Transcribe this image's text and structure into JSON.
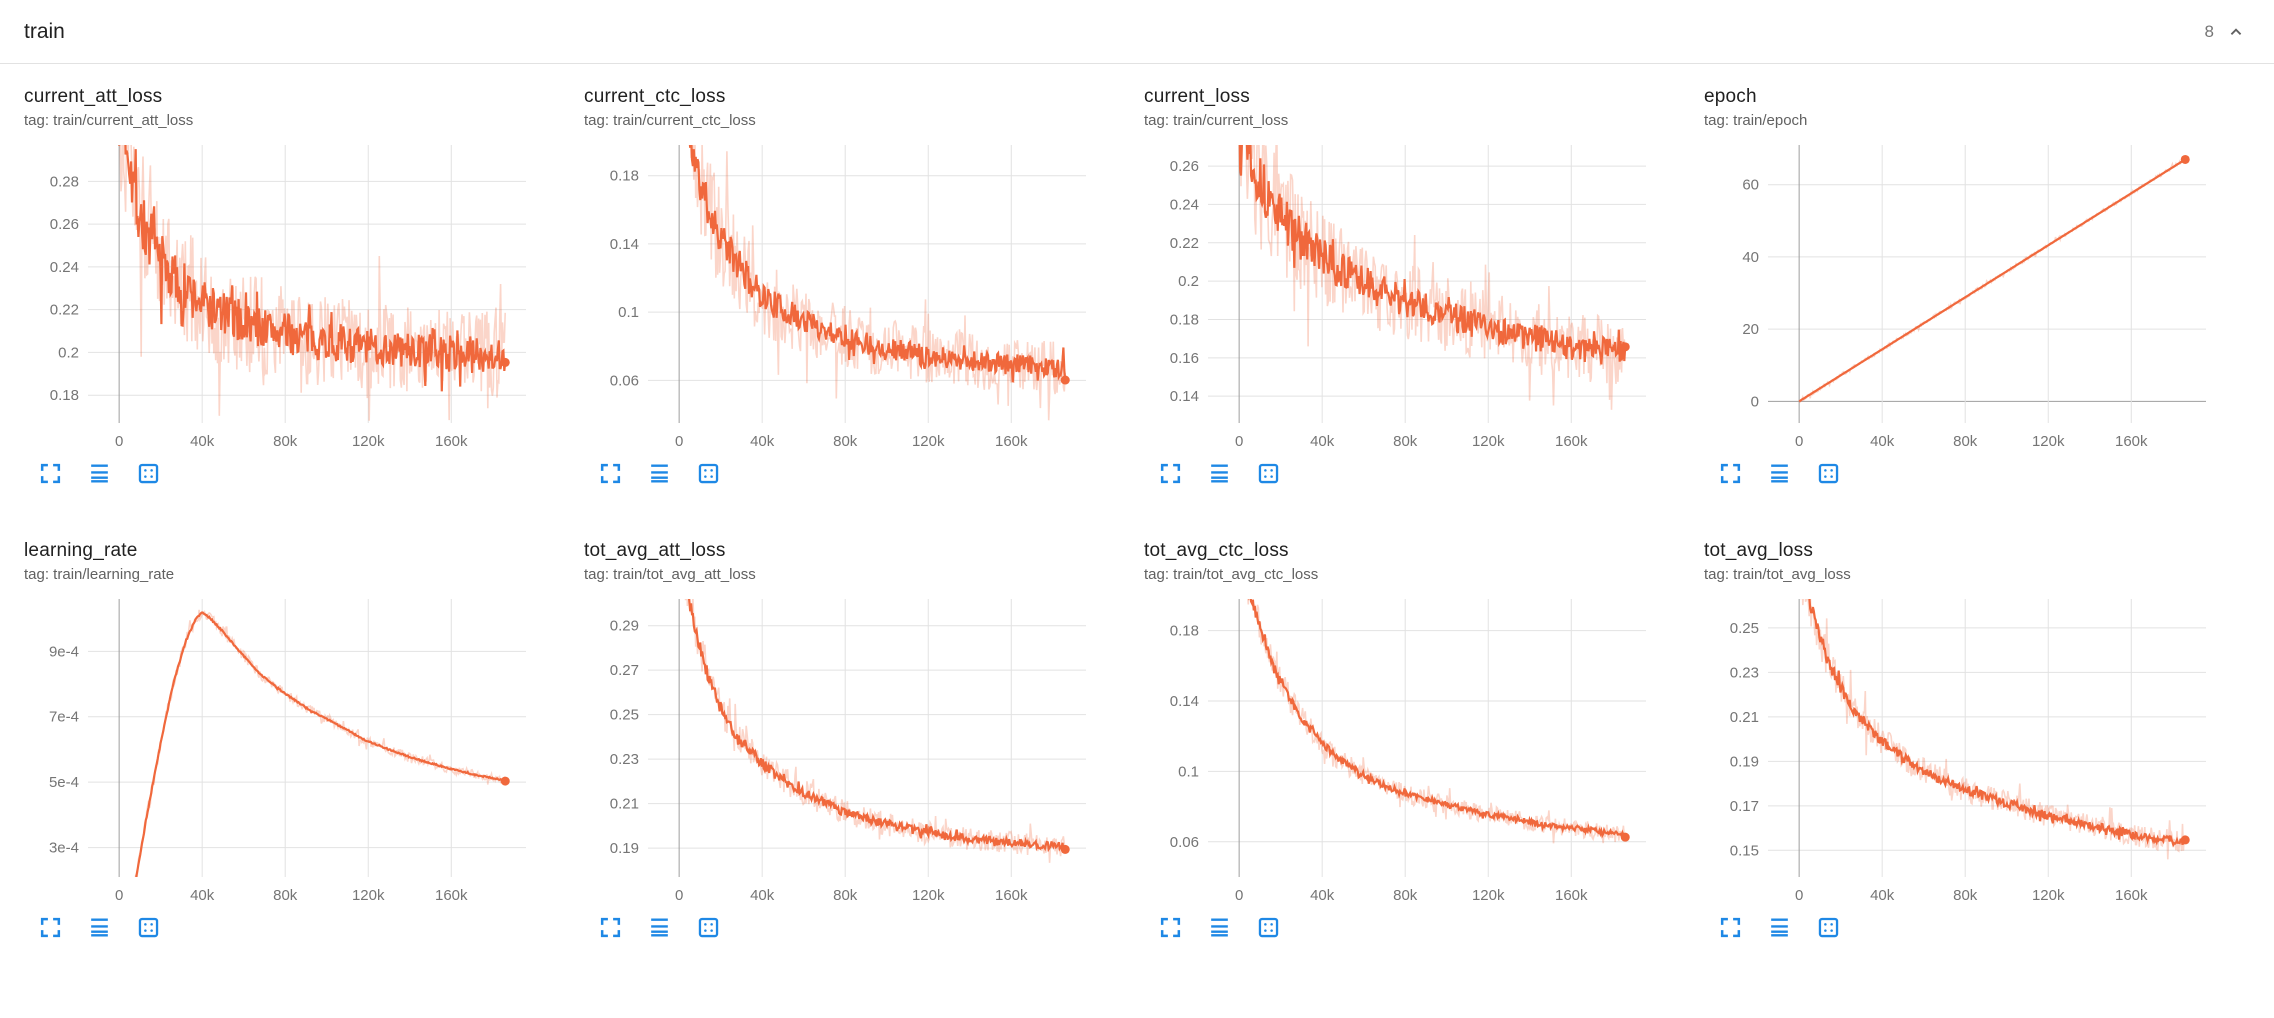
{
  "header": {
    "section_title": "train",
    "chart_count": "8"
  },
  "colors": {
    "series": "#f0683c",
    "raw_opacity": 0.28,
    "tool_icon": "#1e88e5",
    "grid": "#e2e2e2",
    "axis_zero": "#9e9e9e",
    "tick_text": "#757575"
  },
  "x_axis": {
    "xlim": [
      -15000,
      196000
    ],
    "tick_values": [
      0,
      40000,
      80000,
      120000,
      160000
    ],
    "tick_labels": [
      "0",
      "40k",
      "80k",
      "120k",
      "160k"
    ]
  },
  "chart_data": [
    {
      "id": "current_att_loss",
      "type": "line",
      "title": "current_att_loss",
      "tag": "tag: train/current_att_loss",
      "y_ticks": [
        0.18,
        0.2,
        0.22,
        0.24,
        0.26,
        0.28
      ],
      "y_tick_labels": [
        "0.18",
        "0.2",
        "0.22",
        "0.24",
        "0.26",
        "0.28"
      ],
      "ylim": [
        0.167,
        0.297
      ],
      "trend": [
        [
          0,
          0.315
        ],
        [
          4000,
          0.3
        ],
        [
          8000,
          0.272
        ],
        [
          12000,
          0.258
        ],
        [
          16000,
          0.25
        ],
        [
          20000,
          0.243
        ],
        [
          28000,
          0.232
        ],
        [
          36000,
          0.226
        ],
        [
          44000,
          0.221
        ],
        [
          52000,
          0.217
        ],
        [
          60000,
          0.214
        ],
        [
          72000,
          0.211
        ],
        [
          84000,
          0.208
        ],
        [
          96000,
          0.206
        ],
        [
          110000,
          0.204
        ],
        [
          124000,
          0.202
        ],
        [
          138000,
          0.201
        ],
        [
          152000,
          0.2
        ],
        [
          166000,
          0.199
        ],
        [
          186000,
          0.199
        ]
      ],
      "noise": 0.0085,
      "noise_raw": 0.02,
      "noise_decay": 1.2,
      "seed": 7,
      "final_value": 0.2
    },
    {
      "id": "current_ctc_loss",
      "type": "line",
      "title": "current_ctc_loss",
      "tag": "tag: train/current_ctc_loss",
      "y_ticks": [
        0.06,
        0.1,
        0.14,
        0.18
      ],
      "y_tick_labels": [
        "0.06",
        "0.1",
        "0.14",
        "0.18"
      ],
      "ylim": [
        0.035,
        0.198
      ],
      "trend": [
        [
          0,
          0.22
        ],
        [
          4000,
          0.205
        ],
        [
          8000,
          0.185
        ],
        [
          12000,
          0.168
        ],
        [
          16000,
          0.155
        ],
        [
          20000,
          0.145
        ],
        [
          28000,
          0.128
        ],
        [
          36000,
          0.115
        ],
        [
          44000,
          0.106
        ],
        [
          52000,
          0.1
        ],
        [
          60000,
          0.095
        ],
        [
          72000,
          0.089
        ],
        [
          84000,
          0.084
        ],
        [
          96000,
          0.08
        ],
        [
          110000,
          0.077
        ],
        [
          124000,
          0.074
        ],
        [
          138000,
          0.072
        ],
        [
          152000,
          0.07
        ],
        [
          166000,
          0.069
        ],
        [
          186000,
          0.067
        ]
      ],
      "noise": 0.006,
      "noise_raw": 0.016,
      "noise_decay": 1.3,
      "seed": 11,
      "final_value": 0.067
    },
    {
      "id": "current_loss",
      "type": "line",
      "title": "current_loss",
      "tag": "tag: train/current_loss",
      "y_ticks": [
        0.14,
        0.16,
        0.18,
        0.2,
        0.22,
        0.24,
        0.26
      ],
      "y_tick_labels": [
        "0.14",
        "0.16",
        "0.18",
        "0.2",
        "0.22",
        "0.24",
        "0.26"
      ],
      "ylim": [
        0.126,
        0.271
      ],
      "trend": [
        [
          0,
          0.29
        ],
        [
          4000,
          0.275
        ],
        [
          8000,
          0.258
        ],
        [
          12000,
          0.247
        ],
        [
          16000,
          0.24
        ],
        [
          20000,
          0.234
        ],
        [
          28000,
          0.224
        ],
        [
          36000,
          0.216
        ],
        [
          44000,
          0.209
        ],
        [
          52000,
          0.204
        ],
        [
          60000,
          0.199
        ],
        [
          72000,
          0.193
        ],
        [
          84000,
          0.188
        ],
        [
          96000,
          0.184
        ],
        [
          110000,
          0.179
        ],
        [
          124000,
          0.175
        ],
        [
          138000,
          0.171
        ],
        [
          152000,
          0.168
        ],
        [
          166000,
          0.165
        ],
        [
          186000,
          0.162
        ]
      ],
      "noise": 0.0075,
      "noise_raw": 0.018,
      "noise_decay": 1.2,
      "seed": 13,
      "final_value": 0.162
    },
    {
      "id": "epoch",
      "type": "line",
      "title": "epoch",
      "tag": "tag: train/epoch",
      "y_ticks": [
        0,
        20,
        40,
        60
      ],
      "y_tick_labels": [
        "0",
        "20",
        "40",
        "60"
      ],
      "ylim": [
        -6,
        71
      ],
      "trend": [
        [
          0,
          0
        ],
        [
          186000,
          67
        ]
      ],
      "noise": 0,
      "noise_raw": 0.5,
      "noise_decay": 0,
      "seed": 3,
      "final_value": 67
    },
    {
      "id": "learning_rate",
      "type": "line",
      "title": "learning_rate",
      "tag": "tag: train/learning_rate",
      "y_ticks": [
        0.0003,
        0.0005,
        0.0007,
        0.0009
      ],
      "y_tick_labels": [
        "3e-4",
        "5e-4",
        "7e-4",
        "9e-4"
      ],
      "ylim": [
        0.00021,
        0.00106
      ],
      "trend": [
        [
          0,
          2e-05
        ],
        [
          8000,
          0.0002
        ],
        [
          14000,
          0.00042
        ],
        [
          20000,
          0.00062
        ],
        [
          26000,
          0.0008
        ],
        [
          32000,
          0.00093
        ],
        [
          37000,
          0.001
        ],
        [
          40000,
          0.00102
        ],
        [
          44000,
          0.001
        ],
        [
          50000,
          0.00096
        ],
        [
          58000,
          0.0009
        ],
        [
          68000,
          0.00083
        ],
        [
          80000,
          0.00077
        ],
        [
          92000,
          0.00072
        ],
        [
          104000,
          0.00068
        ],
        [
          118000,
          0.00063
        ],
        [
          132000,
          0.000595
        ],
        [
          146000,
          0.000565
        ],
        [
          160000,
          0.00054
        ],
        [
          172000,
          0.000522
        ],
        [
          186000,
          0.000505
        ]
      ],
      "noise": 2e-06,
      "noise_raw": 1.4e-05,
      "noise_decay": 0.8,
      "seed": 5,
      "final_value": 0.000505
    },
    {
      "id": "tot_avg_att_loss",
      "type": "line",
      "title": "tot_avg_att_loss",
      "tag": "tag: train/tot_avg_att_loss",
      "y_ticks": [
        0.19,
        0.21,
        0.23,
        0.25,
        0.27,
        0.29
      ],
      "y_tick_labels": [
        "0.19",
        "0.21",
        "0.23",
        "0.25",
        "0.27",
        "0.29"
      ],
      "ylim": [
        0.177,
        0.302
      ],
      "trend": [
        [
          0,
          0.315
        ],
        [
          4000,
          0.305
        ],
        [
          8000,
          0.288
        ],
        [
          12000,
          0.273
        ],
        [
          16000,
          0.262
        ],
        [
          20000,
          0.253
        ],
        [
          26000,
          0.243
        ],
        [
          32000,
          0.236
        ],
        [
          40000,
          0.228
        ],
        [
          48000,
          0.222
        ],
        [
          56000,
          0.217
        ],
        [
          66000,
          0.212
        ],
        [
          78000,
          0.207
        ],
        [
          90000,
          0.203
        ],
        [
          104000,
          0.2
        ],
        [
          118000,
          0.197
        ],
        [
          132000,
          0.195
        ],
        [
          146000,
          0.1935
        ],
        [
          160000,
          0.1925
        ],
        [
          174000,
          0.1915
        ],
        [
          186000,
          0.191
        ]
      ],
      "noise": 0.0018,
      "noise_raw": 0.005,
      "noise_decay": 1.0,
      "seed": 17,
      "final_value": 0.191
    },
    {
      "id": "tot_avg_ctc_loss",
      "type": "line",
      "title": "tot_avg_ctc_loss",
      "tag": "tag: train/tot_avg_ctc_loss",
      "y_ticks": [
        0.06,
        0.1,
        0.14,
        0.18
      ],
      "y_tick_labels": [
        "0.06",
        "0.1",
        "0.14",
        "0.18"
      ],
      "ylim": [
        0.04,
        0.198
      ],
      "trend": [
        [
          0,
          0.215
        ],
        [
          4000,
          0.205
        ],
        [
          8000,
          0.19
        ],
        [
          12000,
          0.175
        ],
        [
          16000,
          0.162
        ],
        [
          20000,
          0.151
        ],
        [
          26000,
          0.138
        ],
        [
          32000,
          0.127
        ],
        [
          40000,
          0.116
        ],
        [
          48000,
          0.107
        ],
        [
          56000,
          0.101
        ],
        [
          66000,
          0.094
        ],
        [
          78000,
          0.088
        ],
        [
          90000,
          0.084
        ],
        [
          104000,
          0.08
        ],
        [
          118000,
          0.076
        ],
        [
          132000,
          0.073
        ],
        [
          146000,
          0.07
        ],
        [
          160000,
          0.068
        ],
        [
          174000,
          0.066
        ],
        [
          186000,
          0.064
        ]
      ],
      "noise": 0.0015,
      "noise_raw": 0.005,
      "noise_decay": 1.0,
      "seed": 19,
      "final_value": 0.064
    },
    {
      "id": "tot_avg_loss",
      "type": "line",
      "title": "tot_avg_loss",
      "tag": "tag: train/tot_avg_loss",
      "y_ticks": [
        0.15,
        0.17,
        0.19,
        0.21,
        0.23,
        0.25
      ],
      "y_tick_labels": [
        "0.15",
        "0.17",
        "0.19",
        "0.21",
        "0.23",
        "0.25"
      ],
      "ylim": [
        0.138,
        0.263
      ],
      "trend": [
        [
          0,
          0.272
        ],
        [
          4000,
          0.265
        ],
        [
          8000,
          0.252
        ],
        [
          12000,
          0.24
        ],
        [
          16000,
          0.231
        ],
        [
          20000,
          0.223
        ],
        [
          26000,
          0.214
        ],
        [
          32000,
          0.207
        ],
        [
          40000,
          0.199
        ],
        [
          48000,
          0.193
        ],
        [
          56000,
          0.188
        ],
        [
          66000,
          0.183
        ],
        [
          78000,
          0.178
        ],
        [
          90000,
          0.174
        ],
        [
          104000,
          0.17
        ],
        [
          118000,
          0.166
        ],
        [
          132000,
          0.163
        ],
        [
          146000,
          0.16
        ],
        [
          160000,
          0.157
        ],
        [
          174000,
          0.155
        ],
        [
          186000,
          0.153
        ]
      ],
      "noise": 0.0018,
      "noise_raw": 0.005,
      "noise_decay": 1.0,
      "seed": 23,
      "final_value": 0.153
    }
  ]
}
